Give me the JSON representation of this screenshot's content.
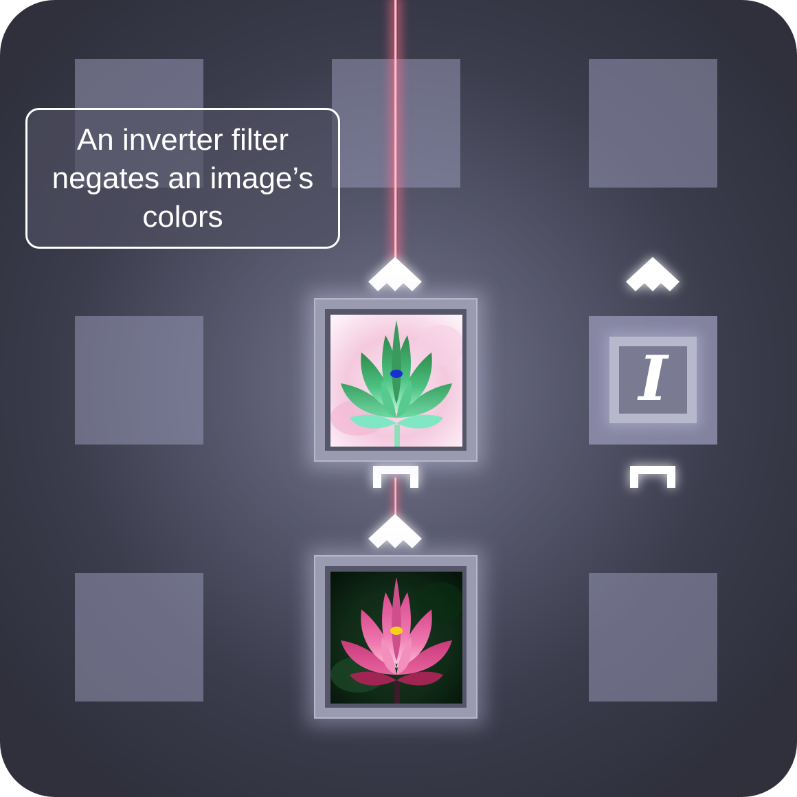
{
  "caption": {
    "text": "An inverter filter negates an image’s colors"
  },
  "filter_tile": {
    "symbol": "I",
    "icon": "inverter-filter-icon"
  },
  "images": {
    "top": {
      "icon": "inverted-lotus-image"
    },
    "bottom": {
      "icon": "lotus-image"
    }
  },
  "colors": {
    "beam": "#ff9fb2",
    "tile": "#9696b4",
    "background": "#3b3c4c"
  }
}
